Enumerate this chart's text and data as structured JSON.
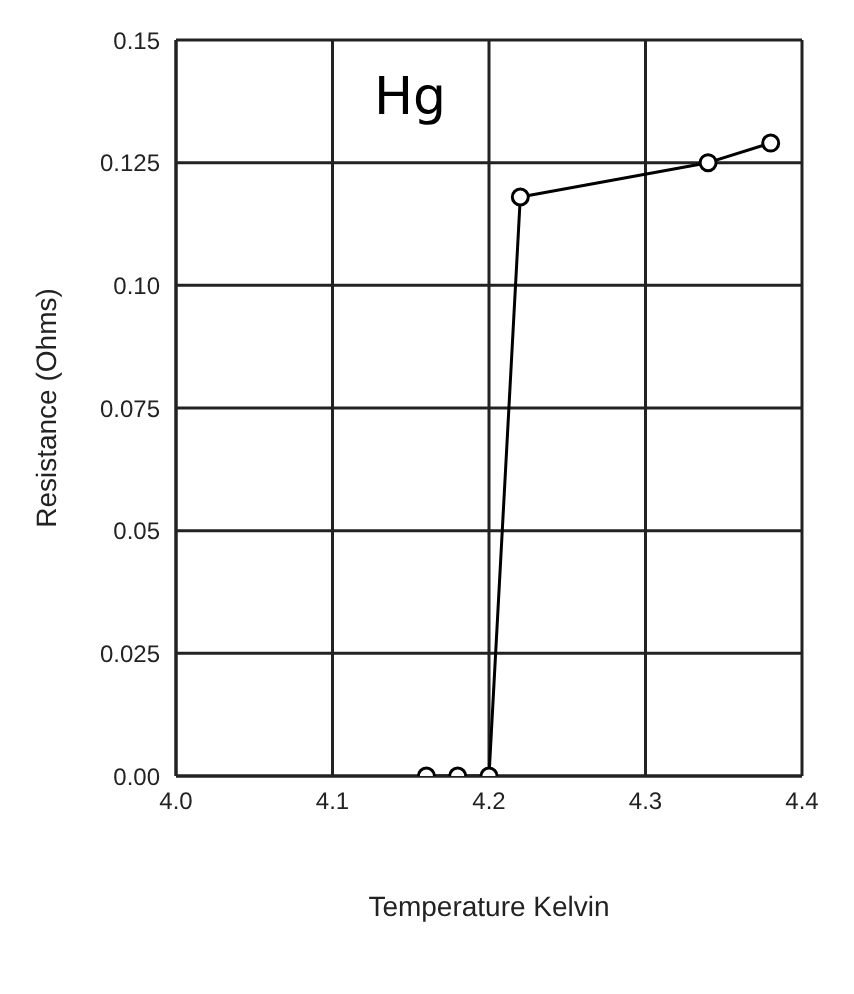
{
  "chart_data": {
    "type": "line",
    "xlabel": "Temperature Kelvin",
    "ylabel": "Resistance (Ohms)",
    "annotations": [
      "Hg"
    ],
    "x": [
      4.16,
      4.18,
      4.2,
      4.22,
      4.34,
      4.38
    ],
    "series": [
      {
        "color": "#000000",
        "values": [
          0,
          0,
          0,
          0.118,
          0.125,
          0.129
        ]
      }
    ],
    "xlim": [
      4.0,
      4.4
    ],
    "xticks": [
      {
        "value": 4.0,
        "label": "4.0"
      },
      4.1,
      4.2,
      4.3,
      4.4
    ],
    "ylim": [
      0,
      0.15
    ],
    "yticks": [
      {
        "value": 0,
        "label": "0.00"
      },
      0.025,
      0.05,
      0.075,
      {
        "value": 0.1,
        "label": "0.10"
      },
      0.125,
      0.15
    ],
    "grid": true,
    "marker": "circle",
    "line_style": "solid",
    "legend": false
  }
}
